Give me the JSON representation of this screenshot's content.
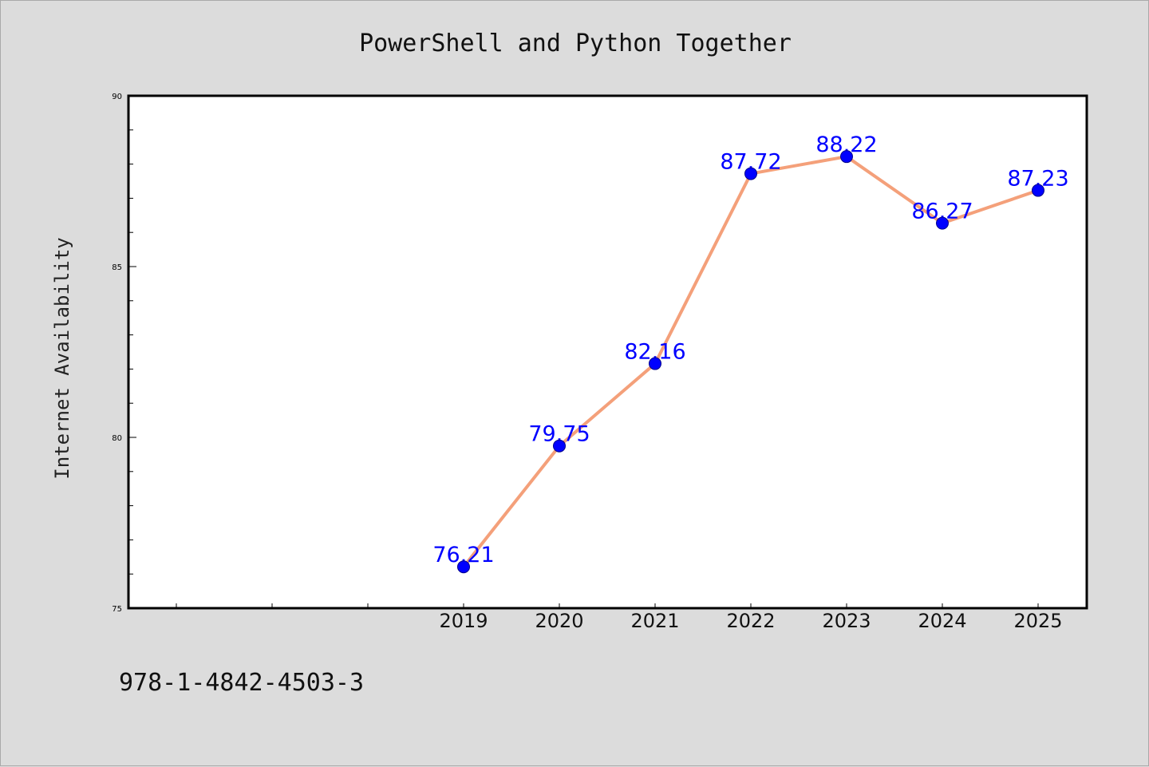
{
  "chart_data": {
    "type": "line",
    "title": "PowerShell and Python Together",
    "ylabel": "Internet Availability",
    "xlabel": "",
    "x": [
      "2019",
      "2020",
      "2021",
      "2022",
      "2023",
      "2024",
      "2025"
    ],
    "series": [
      {
        "values": [
          76.21,
          79.75,
          82.16,
          87.72,
          88.22,
          86.27,
          87.23
        ],
        "labels": [
          "76.21",
          "79.75",
          "82.16",
          "87.72",
          "88.22",
          "86.27",
          "87.23"
        ],
        "line_color": "#f4a07a",
        "marker_color": "#0000ff"
      }
    ],
    "ylim": [
      75,
      90
    ],
    "yticks": [
      "75",
      "80",
      "85",
      "90"
    ],
    "grid": false,
    "legend": "none"
  },
  "footnote": "978-1-4842-4503-3",
  "colors": {
    "background": "#dcdcdc",
    "plot_area": "#ffffff",
    "data_label": "#0000ff"
  }
}
